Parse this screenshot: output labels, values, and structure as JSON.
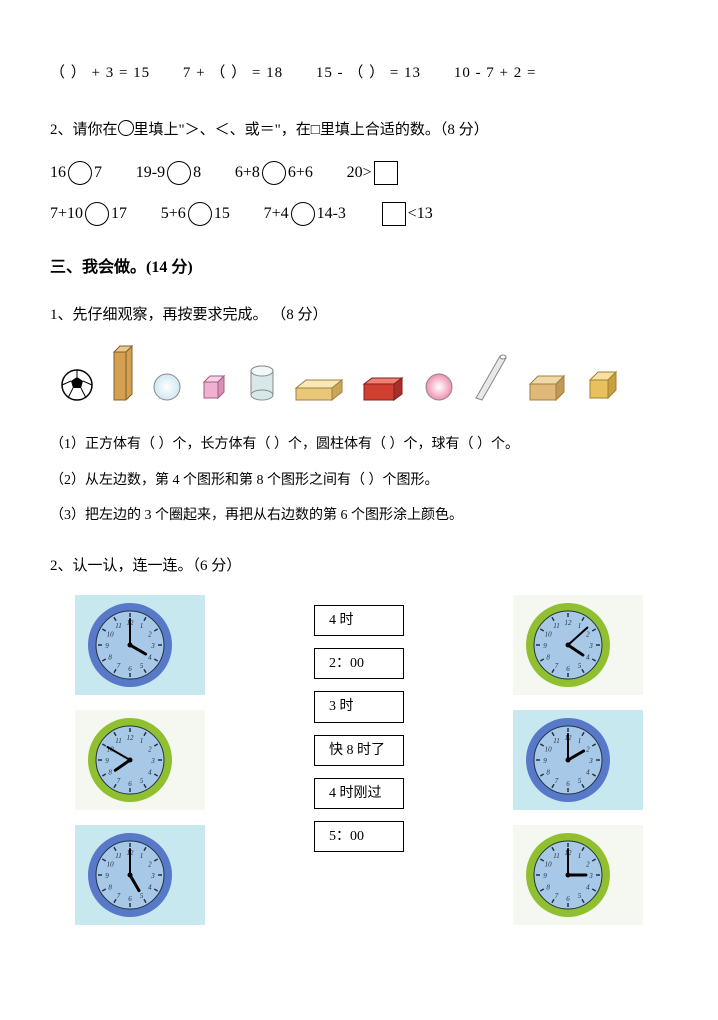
{
  "equations": {
    "e1": "（ ） + 3 = 15",
    "e2": "7 + （   ） =  18",
    "e3": "15 - （  ） = 13",
    "e4": "10 - 7 + 2 ="
  },
  "q2": {
    "instruction_prefix": "2、请你在",
    "instruction_mid": "里填上\"＞、＜、或＝\"，在□里填上合适的数。（8 分）",
    "row1": {
      "a_left": "16",
      "a_right": "7",
      "b_left": "19-9",
      "b_right": "8",
      "c_left": "6+8",
      "c_right": "6+6",
      "d_left": "20>"
    },
    "row2": {
      "a_left": "7+10",
      "a_right": "17",
      "b_left": "5+6",
      "b_right": "15",
      "c_left": "7+4",
      "c_right": "14-3",
      "d_right": "<13"
    }
  },
  "section3": {
    "title": "三、我会做。(14 分)",
    "q1": {
      "title": "1、先仔细观察，再按要求完成。 （8 分）",
      "shapes": [
        {
          "type": "soccer"
        },
        {
          "type": "tall-cuboid",
          "color": "#d4a050"
        },
        {
          "type": "sphere",
          "color": "#d0e8f0"
        },
        {
          "type": "cube-small",
          "color": "#f0b0d0"
        },
        {
          "type": "cylinder",
          "color": "#d8e8e8"
        },
        {
          "type": "flat-cuboid",
          "color": "#e8c878"
        },
        {
          "type": "cuboid-red",
          "color": "#d04030"
        },
        {
          "type": "sphere",
          "color": "#f090b0"
        },
        {
          "type": "thin-rod",
          "color": "#e8e8e8"
        },
        {
          "type": "cuboid-tan",
          "color": "#e0b878"
        },
        {
          "type": "cube",
          "color": "#e8c060"
        }
      ],
      "sub1": "（1）正方体有（    ）个，长方体有（    ）个，圆柱体有（    ）个，球有（    ）个。",
      "sub2": "（2）从左边数，第 4 个图形和第 8 个图形之间有（      ）个图形。",
      "sub3": "（3）把左边的 3 个圈起来，再把从右边数的第 6 个图形涂上颜色。"
    },
    "q2": {
      "title": "2、认一认，连一连。（6 分）",
      "labels": [
        "4 时",
        "2：00",
        "3 时",
        "快 8 时了",
        "4 时刚过",
        "5：00"
      ],
      "clocks_left": [
        {
          "hour": 4,
          "minute": 0,
          "ring": "#5878c8",
          "bg": "blue"
        },
        {
          "hour": 7,
          "minute": 50,
          "ring": "#90c030",
          "bg": "white"
        },
        {
          "hour": 5,
          "minute": 0,
          "ring": "#5878c8",
          "bg": "blue"
        }
      ],
      "clocks_right": [
        {
          "hour": 4,
          "minute": 8,
          "ring": "#90c030",
          "bg": "white"
        },
        {
          "hour": 2,
          "minute": 0,
          "ring": "#5878c8",
          "bg": "blue"
        },
        {
          "hour": 3,
          "minute": 0,
          "ring": "#90c030",
          "bg": "white"
        }
      ]
    }
  },
  "colors": {
    "clock_face": "#a8c8e8",
    "clock_ring_blue": "#5878c8",
    "clock_ring_green": "#90c030",
    "clock_bg_blue": "#c8e8f0"
  }
}
